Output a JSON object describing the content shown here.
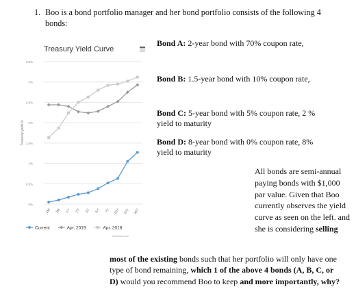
{
  "question": {
    "number": "1.",
    "intro": "Boo is a bond portfolio manager and her bond portfolio consists of the following 4 bonds:"
  },
  "bonds": [
    {
      "label": "Bond A:",
      "desc": "2-year bond with 70% coupon rate,"
    },
    {
      "label": "Bond B:",
      "desc": "1.5-year bond with 10% coupon rate,"
    },
    {
      "label": "Bond C:",
      "desc": "5-year bond with 5% coupon rate, 2 % yield to maturity"
    },
    {
      "label": "Bond D:",
      "desc": "8-year bond with 0% coupon rate, 8% yield to maturity"
    }
  ],
  "side_text": "All bonds are semi-annual paying bonds with $1,000 par value. Given that Boo currently observes the yield curve as seen on the left. and she is considering",
  "side_bold": "selling",
  "bottom": {
    "b1": "most of the existing",
    "t1": " bonds such that her portfolio will only have one type of bond remaining, ",
    "b2": "which 1 of the above 4 bonds (A, B, C, or D)",
    "t2": " would you recommend Boo to keep ",
    "b3": "and more importantly, why?"
  },
  "chart_data": {
    "type": "line",
    "title": "Treasury Yield Curve",
    "ylabel": "Treasury yield %",
    "xlabel": "",
    "source": "CuroFocus.com",
    "categories": [
      "1M",
      "3M",
      "1Y",
      "2Y",
      "3Y",
      "5Y",
      "7Y",
      "10Y",
      "20Y",
      "30Y"
    ],
    "ytick_labels": [
      "0%",
      "0.5%",
      "1%",
      "1.5%",
      "2%",
      "2.5%",
      "3%",
      "3.5%"
    ],
    "ylim": [
      0,
      3.5
    ],
    "legend_position": "bottom",
    "series": [
      {
        "name": "Current",
        "color": "#5b9bd5",
        "marker": "circle",
        "values": [
          0.05,
          0.1,
          0.17,
          0.24,
          0.28,
          0.38,
          0.52,
          0.63,
          1.05,
          1.27
        ]
      },
      {
        "name": "Apr. 2019",
        "color": "#999999",
        "marker": "diamond",
        "values": [
          2.44,
          2.44,
          2.4,
          2.27,
          2.24,
          2.28,
          2.4,
          2.52,
          2.75,
          2.93
        ]
      },
      {
        "name": "Apr. 2018",
        "color": "#cccccc",
        "marker": "square",
        "values": [
          1.63,
          1.87,
          2.24,
          2.5,
          2.63,
          2.8,
          2.92,
          2.95,
          3.02,
          3.12
        ]
      }
    ]
  }
}
